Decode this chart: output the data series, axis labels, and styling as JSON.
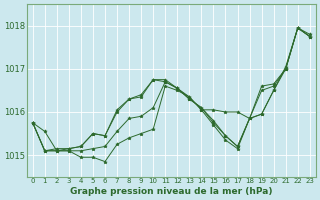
{
  "title": "Graphe pression niveau de la mer (hPa)",
  "background_color": "#cce8ee",
  "plot_bg_color": "#cce8ee",
  "line_color": "#2d6a2d",
  "grid_color": "#b0d8e0",
  "spine_color": "#7aaa7a",
  "xlim": [
    -0.5,
    23.5
  ],
  "ylim": [
    1014.5,
    1018.5
  ],
  "yticks": [
    1015,
    1016,
    1017,
    1018
  ],
  "xticks": [
    0,
    1,
    2,
    3,
    4,
    5,
    6,
    7,
    8,
    9,
    10,
    11,
    12,
    13,
    14,
    15,
    16,
    17,
    18,
    19,
    20,
    21,
    22,
    23
  ],
  "series": [
    [
      1015.75,
      1015.55,
      1015.1,
      1015.1,
      1014.95,
      1014.95,
      1014.85,
      1015.25,
      1015.4,
      1015.5,
      1015.6,
      1016.6,
      1016.5,
      1016.35,
      1016.05,
      1015.7,
      1015.35,
      1015.15,
      1015.85,
      1016.5,
      1016.6,
      1017.0,
      1017.95,
      1017.8
    ],
    [
      1015.75,
      1015.1,
      1015.1,
      1015.1,
      1015.1,
      1015.15,
      1015.2,
      1015.55,
      1015.85,
      1015.9,
      1016.1,
      1016.7,
      1016.55,
      1016.35,
      1016.05,
      1016.05,
      1016.0,
      1016.0,
      1015.85,
      1016.6,
      1016.65,
      1017.0,
      1017.95,
      1017.75
    ],
    [
      1015.75,
      1015.1,
      1015.1,
      1015.15,
      1015.2,
      1015.5,
      1015.45,
      1016.0,
      1016.3,
      1016.35,
      1016.75,
      1016.75,
      1016.55,
      1016.3,
      1016.1,
      1015.75,
      1015.45,
      1015.2,
      1015.85,
      1015.95,
      1016.5,
      1017.0,
      1017.95,
      1017.75
    ],
    [
      1015.75,
      1015.1,
      1015.15,
      1015.15,
      1015.2,
      1015.5,
      1015.45,
      1016.05,
      1016.3,
      1016.4,
      1016.75,
      1016.7,
      1016.55,
      1016.3,
      1016.1,
      1015.8,
      1015.45,
      1015.2,
      1015.85,
      1015.95,
      1016.5,
      1017.05,
      1017.95,
      1017.75
    ]
  ],
  "figsize": [
    3.2,
    2.0
  ],
  "dpi": 100,
  "ylabel_fontsize": 6,
  "xlabel_fontsize": 6,
  "tick_fontsize": 5,
  "title_fontsize": 6.5
}
